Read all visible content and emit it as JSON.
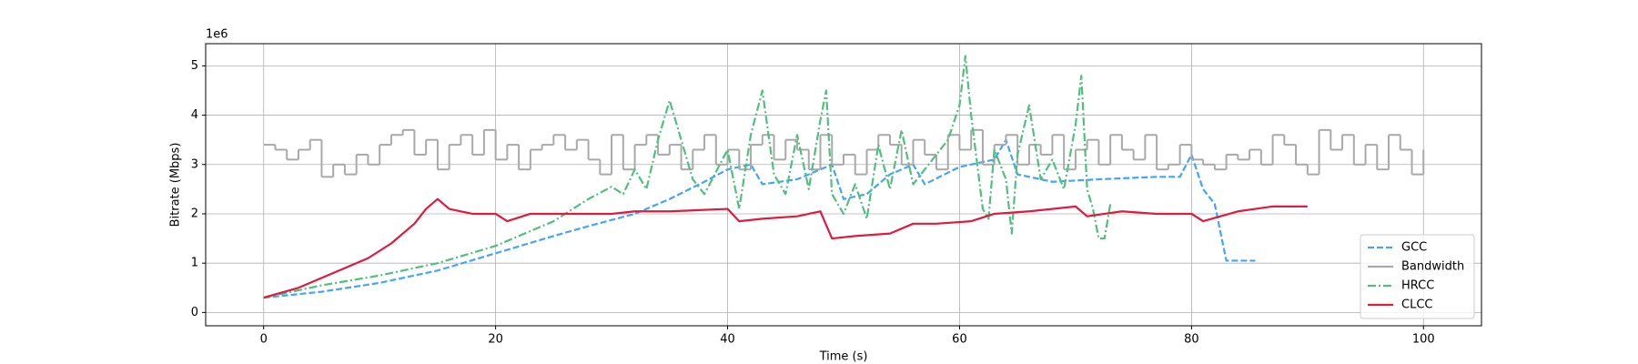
{
  "chart_data": {
    "type": "line",
    "xlabel": "Time (s)",
    "ylabel": "Bitrate (Mbps)",
    "y_offset_label": "1e6",
    "xlim": [
      -5,
      105
    ],
    "xticks": [
      0,
      20,
      40,
      60,
      80,
      100
    ],
    "ylim": [
      -0.27,
      5.45
    ],
    "yticks": [
      0,
      1,
      2,
      3,
      4,
      5
    ],
    "grid": true,
    "legend": "lower right",
    "series": [
      {
        "name": "GCC",
        "color": "#42a5f5",
        "linestyle": "dashed",
        "x": [
          0,
          5,
          10,
          15,
          20,
          25,
          28,
          32,
          35,
          38,
          40,
          42,
          43,
          46,
          49,
          50,
          52,
          54,
          56,
          57,
          60,
          63,
          64,
          65,
          68,
          72,
          77,
          79,
          80,
          81,
          82,
          83,
          85.5
        ],
        "values": [
          0.3,
          0.42,
          0.6,
          0.85,
          1.2,
          1.55,
          1.75,
          2.0,
          2.3,
          2.65,
          2.9,
          3.0,
          2.6,
          2.7,
          3.0,
          2.3,
          2.4,
          2.8,
          3.0,
          2.6,
          2.95,
          3.1,
          3.5,
          2.8,
          2.65,
          2.7,
          2.75,
          2.75,
          3.2,
          2.5,
          2.2,
          1.05,
          1.05
        ]
      },
      {
        "name": "Bandwidth",
        "color": "#a9a9a9",
        "linestyle": "steps-post",
        "x": [
          0,
          1,
          2,
          3,
          4,
          5,
          6,
          7,
          8,
          9,
          10,
          11,
          12,
          13,
          14,
          15,
          16,
          17,
          18,
          19,
          20,
          21,
          22,
          23,
          24,
          25,
          26,
          27,
          28,
          29,
          30,
          31,
          32,
          33,
          34,
          35,
          36,
          37,
          38,
          39,
          40,
          41,
          42,
          43,
          44,
          45,
          46,
          47,
          48,
          49,
          50,
          51,
          52,
          53,
          54,
          55,
          56,
          57,
          58,
          59,
          60,
          61,
          62,
          63,
          64,
          65,
          66,
          67,
          68,
          69,
          70,
          71,
          72,
          73,
          74,
          75,
          76,
          77,
          78,
          79,
          80,
          81,
          82,
          83,
          84,
          85,
          86,
          87,
          88,
          89,
          90,
          91,
          92,
          93,
          94,
          95,
          96,
          97,
          98,
          99,
          100
        ],
        "values": [
          3.4,
          3.3,
          3.1,
          3.3,
          3.5,
          2.75,
          3.0,
          2.8,
          3.2,
          3.0,
          3.4,
          3.6,
          3.7,
          3.2,
          3.5,
          2.9,
          3.4,
          3.6,
          3.2,
          3.7,
          3.1,
          3.4,
          2.9,
          3.3,
          3.4,
          3.6,
          3.3,
          3.5,
          3.1,
          2.8,
          3.6,
          2.9,
          3.4,
          3.6,
          3.2,
          3.4,
          2.9,
          3.3,
          3.6,
          3.0,
          3.3,
          2.9,
          3.4,
          3.6,
          3.1,
          3.5,
          3.3,
          2.9,
          3.6,
          3.0,
          3.2,
          2.8,
          3.3,
          3.6,
          3.4,
          3.0,
          3.5,
          3.2,
          2.9,
          3.6,
          3.3,
          3.7,
          3.0,
          3.4,
          3.6,
          3.0,
          3.4,
          3.2,
          3.6,
          2.9,
          3.3,
          3.5,
          3.0,
          3.6,
          3.3,
          3.1,
          3.6,
          2.9,
          3.0,
          3.4,
          3.1,
          3.0,
          2.9,
          3.2,
          3.1,
          3.3,
          3.0,
          3.6,
          3.4,
          3.0,
          2.8,
          3.7,
          3.3,
          3.6,
          3.0,
          3.4,
          2.9,
          3.6,
          3.3,
          2.8,
          3.3
        ]
      },
      {
        "name": "HRCC",
        "color": "#52be80",
        "linestyle": "dashdot",
        "x": [
          0,
          5,
          10,
          15,
          20,
          25,
          28,
          30,
          31,
          32,
          33,
          34,
          35,
          36,
          37,
          38,
          40,
          41,
          42,
          43,
          44,
          45,
          46,
          47,
          48,
          48.5,
          49,
          50,
          51,
          52,
          53,
          54,
          55,
          56,
          57,
          59,
          60,
          60.5,
          61,
          62,
          62.5,
          63,
          64,
          64.5,
          65,
          66,
          67,
          68,
          69,
          70,
          70.5,
          71,
          71.5,
          72,
          72.5,
          73
        ],
        "values": [
          0.3,
          0.55,
          0.75,
          1.0,
          1.35,
          1.85,
          2.3,
          2.55,
          2.4,
          2.9,
          2.5,
          3.5,
          4.3,
          3.5,
          2.7,
          2.4,
          3.3,
          2.1,
          3.6,
          4.5,
          2.8,
          2.4,
          3.6,
          2.5,
          3.9,
          4.5,
          2.4,
          2.0,
          2.6,
          1.9,
          3.4,
          2.5,
          3.7,
          2.6,
          2.9,
          3.5,
          4.2,
          5.2,
          4.0,
          2.1,
          1.9,
          3.3,
          2.7,
          1.6,
          3.2,
          4.2,
          2.7,
          3.1,
          2.5,
          3.8,
          4.8,
          2.5,
          2.1,
          1.5,
          1.5,
          2.2
        ]
      },
      {
        "name": "CLCC",
        "color": "#dc1c40",
        "linestyle": "solid",
        "x": [
          0,
          3,
          6,
          9,
          11,
          13,
          14,
          15,
          16,
          18,
          20,
          21,
          23,
          26,
          30,
          32,
          35,
          40,
          41,
          43,
          46,
          48,
          49,
          51,
          54,
          56,
          58,
          61,
          63,
          66,
          70,
          71,
          74,
          77,
          80,
          81,
          84,
          87,
          90
        ],
        "values": [
          0.3,
          0.5,
          0.8,
          1.1,
          1.4,
          1.8,
          2.1,
          2.3,
          2.1,
          2.0,
          2.0,
          1.85,
          2.0,
          2.0,
          2.0,
          2.05,
          2.05,
          2.1,
          1.85,
          1.9,
          1.95,
          2.05,
          1.5,
          1.55,
          1.6,
          1.8,
          1.8,
          1.85,
          2.0,
          2.05,
          2.15,
          1.95,
          2.05,
          2.0,
          2.0,
          1.85,
          2.05,
          2.15,
          2.15
        ]
      }
    ]
  }
}
